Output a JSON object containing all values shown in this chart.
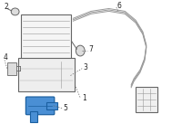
{
  "bg_color": "#ffffff",
  "lc": "#999999",
  "lc_dark": "#666666",
  "highlight_color": "#4a8fd4",
  "highlight_edge": "#1a5fa0",
  "label_color": "#222222",
  "label_fontsize": 5.5,
  "dash_color": "#666666",
  "fig_width": 2.0,
  "fig_height": 1.47,
  "dpi": 100
}
